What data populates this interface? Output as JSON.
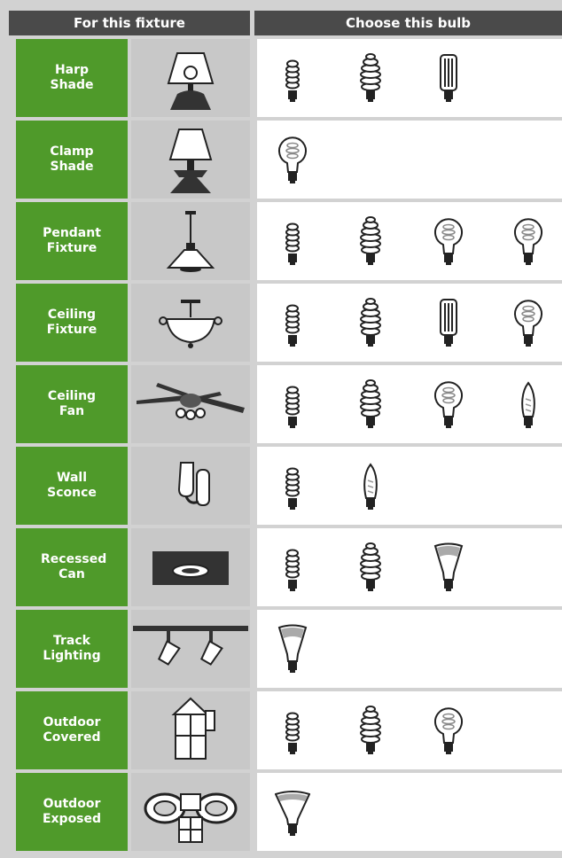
{
  "header": {
    "fixture": "For this fixture",
    "bulb": "Choose this bulb"
  },
  "rows": [
    {
      "label": "Harp Shade"
    },
    {
      "label": "Clamp Shade"
    },
    {
      "label": "Pendant Fixture"
    },
    {
      "label": "Ceiling Fixture"
    },
    {
      "label": "Ceiling Fan"
    },
    {
      "label": "Wall Sconce"
    },
    {
      "label": "Recessed Can"
    },
    {
      "label": "Track Lighting"
    },
    {
      "label": "Outdoor Covered"
    },
    {
      "label": "Outdoor Exposed"
    }
  ]
}
